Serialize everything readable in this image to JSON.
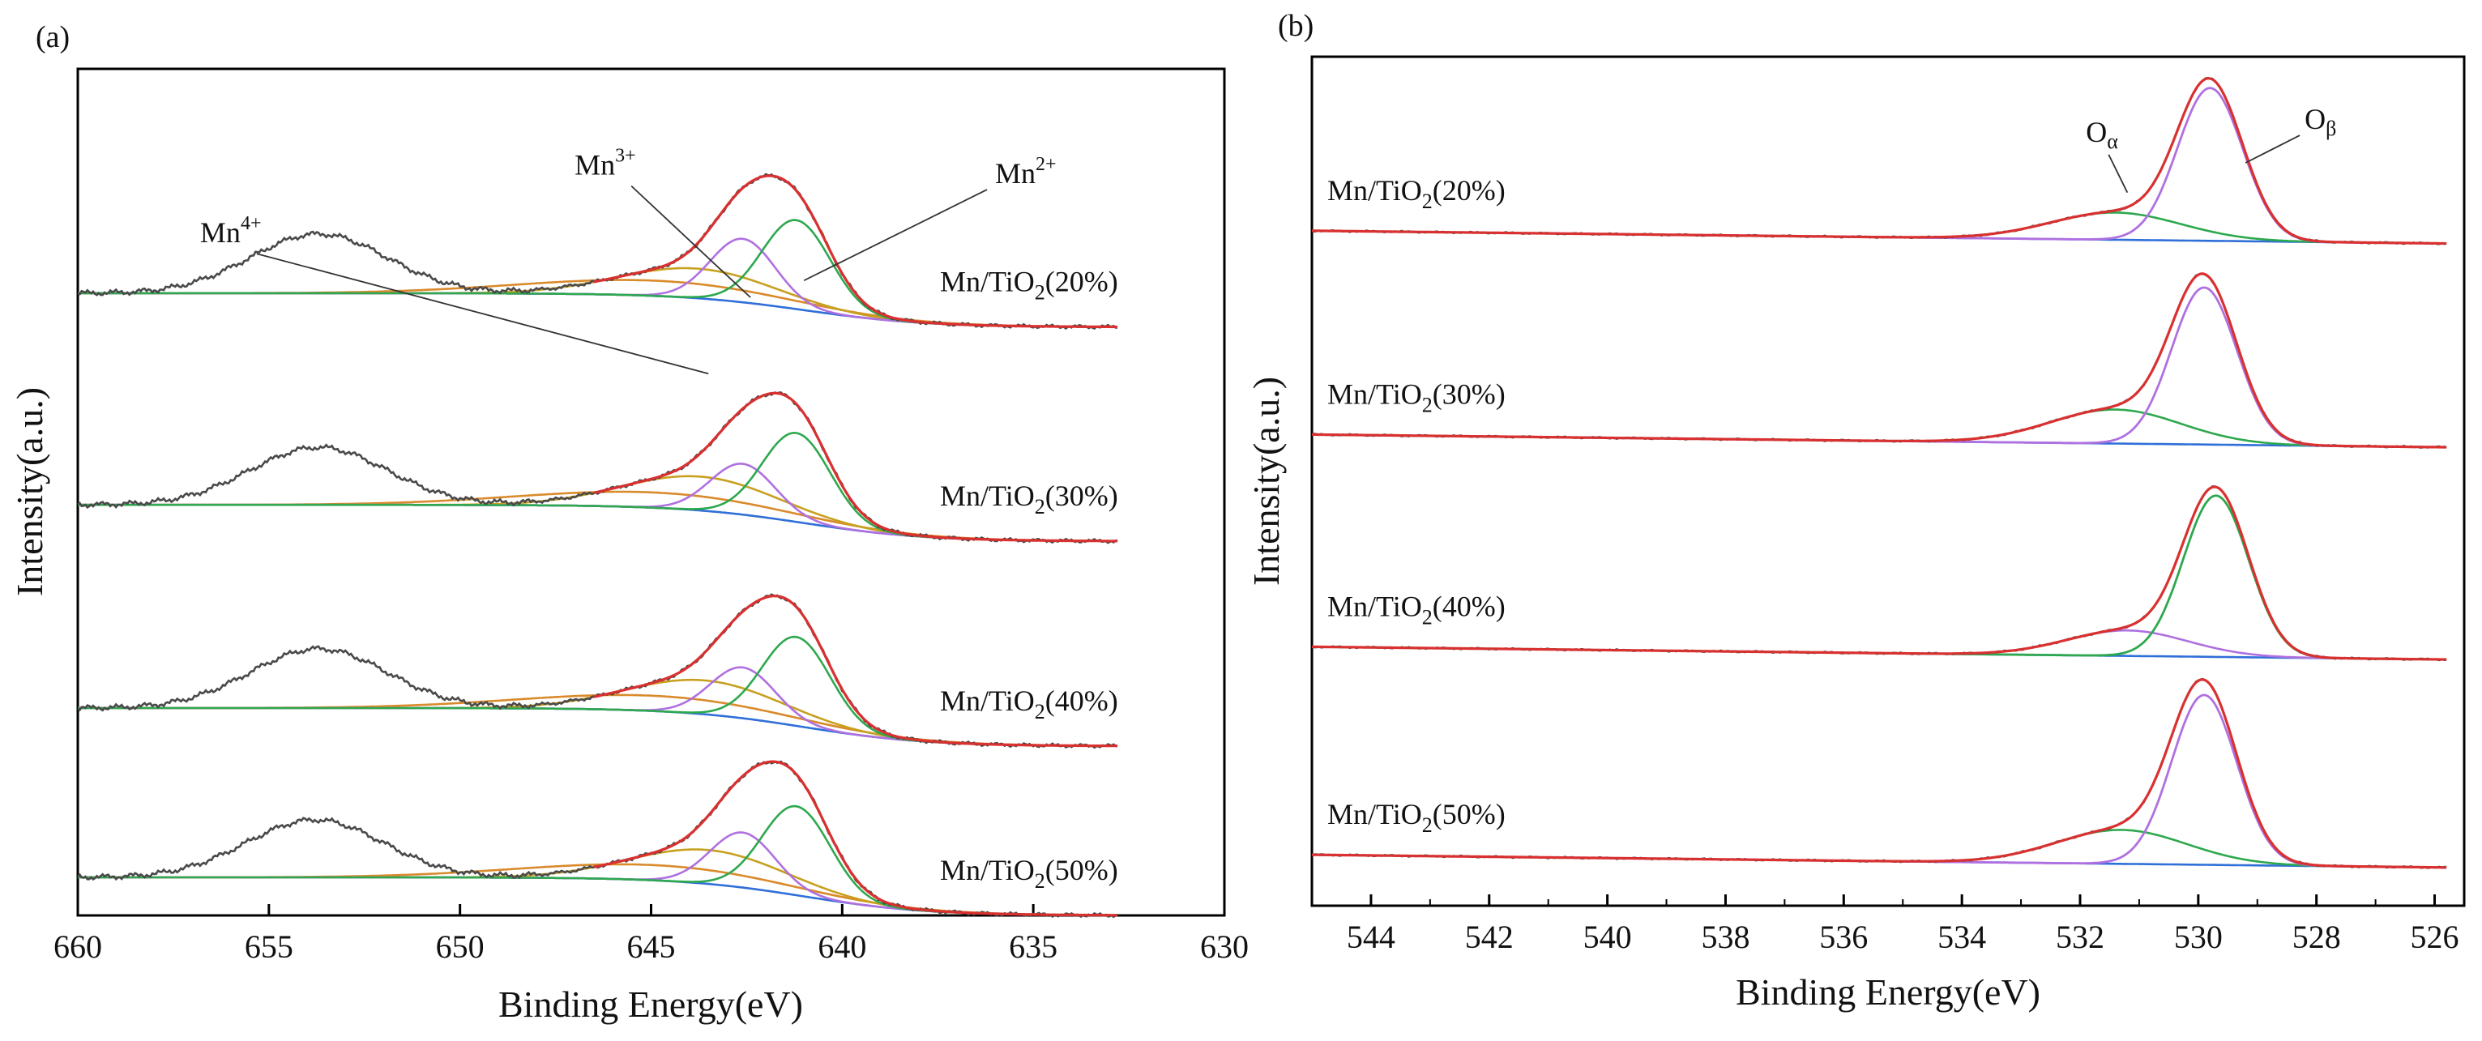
{
  "figure": {
    "panels": [
      "(a)",
      "(b)"
    ]
  },
  "chart_data": [
    {
      "type": "line",
      "panel": "(a)",
      "title": "",
      "xlabel": "Binding Energy(eV)",
      "ylabel": "Intensity(a.u.)",
      "xlim": [
        660,
        630
      ],
      "xticks": [
        "660",
        "655",
        "650",
        "645",
        "640",
        "635",
        "630"
      ],
      "data_end": 632.8,
      "annotations": [
        {
          "ion": "Mn",
          "charge": "4+",
          "label": "Mn4+",
          "text_x": 656.8,
          "text_level": 0.205,
          "line_to_x": 643.5,
          "line_to_level": 0.36
        },
        {
          "ion": "Mn",
          "charge": "3+",
          "label": "Mn3+",
          "text_x": 647.0,
          "text_level": 0.125,
          "line_to_x": 642.4,
          "line_to_level": 0.27
        },
        {
          "ion": "Mn",
          "charge": "2+",
          "label": "Mn2+",
          "text_x": 636.0,
          "text_level": 0.135,
          "line_to_x": 641.0,
          "line_to_level": 0.25
        }
      ],
      "series_colors": {
        "raw": "#4a4a4a",
        "envelope": "#d93030",
        "Mn2+": "#2ea84e",
        "Mn3+": "#b070e0",
        "Mn4+": "#c8a020",
        "satellite": "#d98a2b",
        "background": "#2f6fd8"
      },
      "samples": [
        {
          "name": "Mn/TiO2(20%)",
          "label_main": "Mn/TiO",
          "label_sub": "2",
          "label_rest": "(20%)",
          "baseline_high": 0.265,
          "baseline_low": 0.305,
          "peaks": [
            {
              "component": "Mn2+",
              "center": 641.2,
              "height": 0.105,
              "fwhm": 2.1
            },
            {
              "component": "Mn3+",
              "center": 642.6,
              "height": 0.075,
              "fwhm": 2.0
            },
            {
              "component": "Mn4+",
              "center": 643.8,
              "height": 0.035,
              "fwhm": 4.8
            }
          ],
          "satellite": {
            "center": 653.7,
            "height": 0.07,
            "fwhm": 4.2
          }
        },
        {
          "name": "Mn/TiO2(30%)",
          "label_main": "Mn/TiO",
          "label_sub": "2",
          "label_rest": "(30%)",
          "baseline_high": 0.515,
          "baseline_low": 0.558,
          "peaks": [
            {
              "component": "Mn2+",
              "center": 641.2,
              "height": 0.105,
              "fwhm": 2.1
            },
            {
              "component": "Mn3+",
              "center": 642.6,
              "height": 0.06,
              "fwhm": 2.0
            },
            {
              "component": "Mn4+",
              "center": 643.7,
              "height": 0.04,
              "fwhm": 4.8
            }
          ],
          "satellite": {
            "center": 653.7,
            "height": 0.068,
            "fwhm": 4.2
          }
        },
        {
          "name": "Mn/TiO2(40%)",
          "label_main": "Mn/TiO",
          "label_sub": "2",
          "label_rest": "(40%)",
          "baseline_high": 0.755,
          "baseline_low": 0.8,
          "peaks": [
            {
              "component": "Mn2+",
              "center": 641.2,
              "height": 0.105,
              "fwhm": 2.1
            },
            {
              "component": "Mn3+",
              "center": 642.6,
              "height": 0.06,
              "fwhm": 2.0
            },
            {
              "component": "Mn4+",
              "center": 643.6,
              "height": 0.04,
              "fwhm": 4.8
            }
          ],
          "satellite": {
            "center": 653.7,
            "height": 0.07,
            "fwhm": 4.2
          }
        },
        {
          "name": "Mn/TiO2(50%)",
          "label_main": "Mn/TiO",
          "label_sub": "2",
          "label_rest": "(50%)",
          "baseline_high": 0.955,
          "baseline_low": 1.0,
          "peaks": [
            {
              "component": "Mn2+",
              "center": 641.2,
              "height": 0.105,
              "fwhm": 2.1
            },
            {
              "component": "Mn3+",
              "center": 642.6,
              "height": 0.065,
              "fwhm": 2.0
            },
            {
              "component": "Mn4+",
              "center": 643.5,
              "height": 0.04,
              "fwhm": 4.8
            }
          ],
          "satellite": {
            "center": 653.8,
            "height": 0.068,
            "fwhm": 4.2
          }
        }
      ]
    },
    {
      "type": "line",
      "panel": "(b)",
      "title": "",
      "xlabel": "Binding Energy(eV)",
      "ylabel": "Intensity(a.u.)",
      "xlim": [
        545,
        525.5
      ],
      "xticks": [
        "544",
        "542",
        "540",
        "538",
        "536",
        "534",
        "532",
        "530",
        "528",
        "526"
      ],
      "data_start": 545,
      "data_end": 525.8,
      "annotations": [
        {
          "label": "Oα",
          "main": "O",
          "greek": "α",
          "text_x": 531.9,
          "text_level": 0.1,
          "line_to_x": 531.2,
          "line_to_level": 0.16
        },
        {
          "label": "Oβ",
          "main": "O",
          "greek": "β",
          "text_x": 528.2,
          "text_level": 0.085,
          "line_to_x": 529.2,
          "line_to_level": 0.125
        }
      ],
      "series_colors": {
        "raw": "#4a4a4a",
        "envelope": "#d93030",
        "Oα": "#2ea84e",
        "Oβ": "#b070e0",
        "background": "#2f6fd8"
      },
      "samples": [
        {
          "name": "Mn/TiO2(20%)",
          "label_main": "Mn/TiO",
          "label_sub": "2",
          "label_rest": "(20%)",
          "baseline_high": 0.205,
          "baseline_low": 0.22,
          "beta_component": "Oβ",
          "alpha": {
            "center": 531.4,
            "height": 0.032,
            "fwhm": 2.6
          },
          "beta": {
            "center": 529.8,
            "height": 0.18,
            "fwhm": 1.3
          }
        },
        {
          "name": "Mn/TiO2(30%)",
          "label_main": "Mn/TiO",
          "label_sub": "2",
          "label_rest": "(30%)",
          "baseline_high": 0.445,
          "baseline_low": 0.46,
          "beta_component": "Oβ",
          "alpha": {
            "center": 531.4,
            "height": 0.04,
            "fwhm": 2.6
          },
          "beta": {
            "center": 529.9,
            "height": 0.185,
            "fwhm": 1.3
          }
        },
        {
          "name": "Mn/TiO2(40%)",
          "label_main": "Mn/TiO",
          "label_sub": "2",
          "label_rest": "(40%)",
          "baseline_high": 0.695,
          "baseline_low": 0.71,
          "beta_component": "Oα",
          "alpha": {
            "center": 531.2,
            "height": 0.03,
            "fwhm": 2.4
          },
          "beta": {
            "center": 529.7,
            "height": 0.19,
            "fwhm": 1.3
          }
        },
        {
          "name": "Mn/TiO2(50%)",
          "label_main": "Mn/TiO",
          "label_sub": "2",
          "label_rest": "(50%)",
          "baseline_high": 0.94,
          "baseline_low": 0.955,
          "beta_component": "Oβ",
          "alpha": {
            "center": 531.3,
            "height": 0.04,
            "fwhm": 2.6
          },
          "beta": {
            "center": 529.9,
            "height": 0.2,
            "fwhm": 1.3
          }
        }
      ]
    }
  ]
}
